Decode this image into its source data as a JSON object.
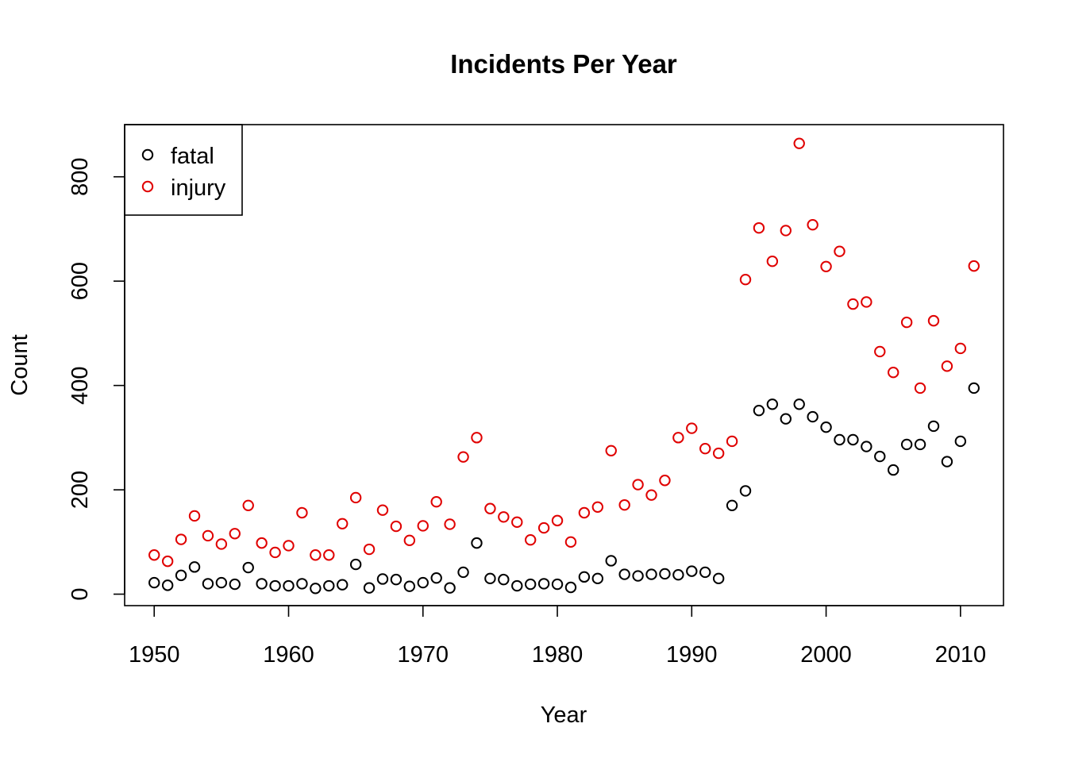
{
  "chart_data": {
    "type": "scatter",
    "title": "Incidents Per Year",
    "xlabel": "Year",
    "ylabel": "Count",
    "xlim": [
      1947.8,
      2013.2
    ],
    "ylim": [
      -22,
      900
    ],
    "xticks": [
      1950,
      1960,
      1970,
      1980,
      1990,
      2000,
      2010
    ],
    "yticks": [
      0,
      200,
      400,
      600,
      800
    ],
    "grid": false,
    "legend_position": "top-left",
    "x": [
      1950,
      1951,
      1952,
      1953,
      1954,
      1955,
      1956,
      1957,
      1958,
      1959,
      1960,
      1961,
      1962,
      1963,
      1964,
      1965,
      1966,
      1967,
      1968,
      1969,
      1970,
      1971,
      1972,
      1973,
      1974,
      1975,
      1976,
      1977,
      1978,
      1979,
      1980,
      1981,
      1982,
      1983,
      1984,
      1985,
      1986,
      1987,
      1988,
      1989,
      1990,
      1991,
      1992,
      1993,
      1994,
      1995,
      1996,
      1997,
      1998,
      1999,
      2000,
      2001,
      2002,
      2003,
      2004,
      2005,
      2006,
      2007,
      2008,
      2009,
      2010,
      2011
    ],
    "series": [
      {
        "name": "fatal",
        "color": "#000000",
        "values": [
          22,
          17,
          36,
          52,
          20,
          22,
          19,
          51,
          20,
          16,
          16,
          20,
          11,
          16,
          18,
          57,
          12,
          29,
          28,
          15,
          22,
          31,
          12,
          42,
          98,
          30,
          28,
          16,
          19,
          20,
          19,
          13,
          33,
          30,
          64,
          38,
          35,
          38,
          39,
          37,
          44,
          42,
          30,
          170,
          198,
          352,
          364,
          336,
          364,
          340,
          320,
          296,
          296,
          283,
          264,
          238,
          287,
          287,
          322,
          254,
          293,
          395
        ]
      },
      {
        "name": "injury",
        "color": "#e00000",
        "values": [
          75,
          63,
          105,
          150,
          112,
          96,
          116,
          170,
          98,
          80,
          93,
          156,
          75,
          75,
          135,
          185,
          86,
          161,
          130,
          103,
          131,
          177,
          134,
          263,
          300,
          164,
          148,
          138,
          104,
          127,
          141,
          100,
          156,
          167,
          275,
          171,
          210,
          190,
          218,
          300,
          318,
          279,
          270,
          293,
          603,
          702,
          638,
          697,
          864,
          708,
          628,
          657,
          556,
          560,
          465,
          425,
          521,
          395,
          524,
          437,
          471,
          629
        ]
      }
    ]
  }
}
